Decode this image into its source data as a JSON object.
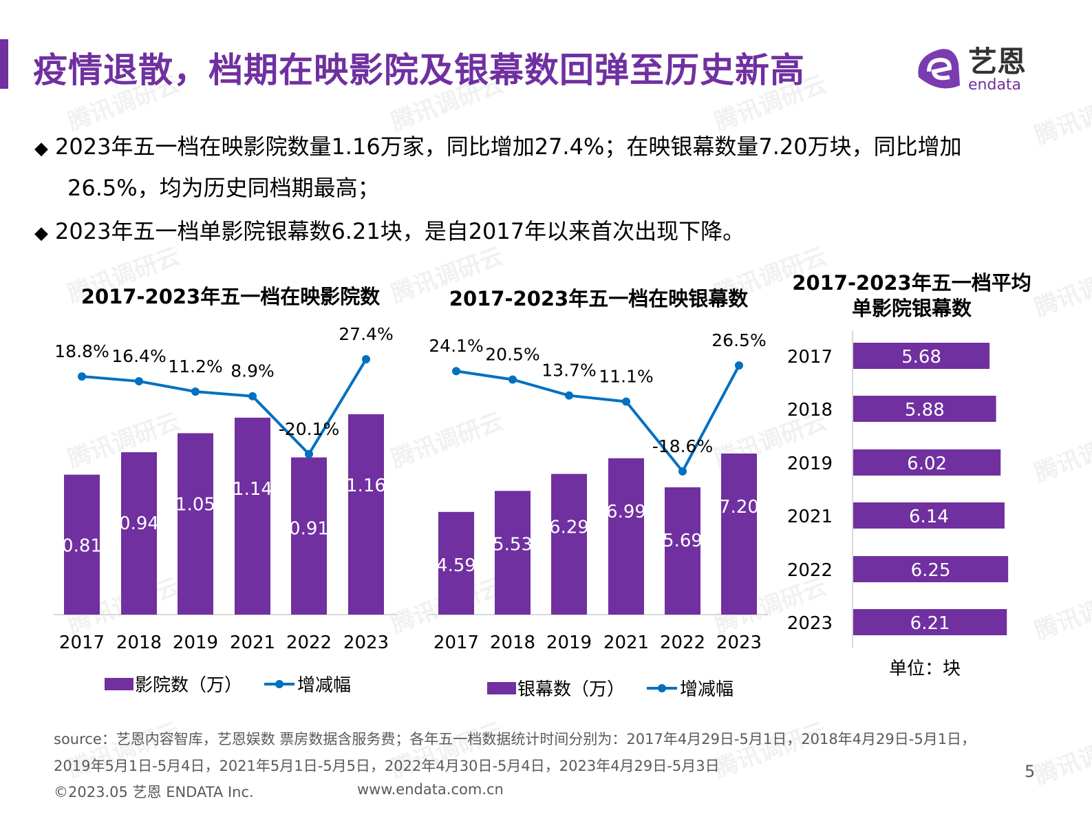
{
  "title": "疫情退散，档期在映影院及银幕数回弹至历史新高",
  "logo": {
    "cn": "艺恩",
    "en": "endata",
    "color": "#7030a0"
  },
  "watermark": "腾讯调研云",
  "bullets": [
    {
      "line1": "2023年五一档在映影院数量1.16万家，同比增加27.4%；在映银幕数量7.20万块，同比增加",
      "line2": "26.5%，均为历史同档期最高；"
    },
    {
      "line1": "2023年五一档单影院银幕数6.21块，是自2017年以来首次出现下降。"
    }
  ],
  "colors": {
    "bar": "#7030a0",
    "line": "#0070c0",
    "title": "#7030a0"
  },
  "chart_data": [
    {
      "type": "bar+line",
      "title": "2017-2023年五一档在映影院数",
      "categories": [
        "2017",
        "2018",
        "2019",
        "2021",
        "2022",
        "2023"
      ],
      "series": [
        {
          "name": "影院数（万）",
          "type": "bar",
          "values": [
            0.81,
            0.94,
            1.05,
            1.14,
            0.91,
            1.16
          ],
          "labels": [
            "0.81",
            "0.94",
            "1.05",
            "1.14",
            "0.91",
            "1.16"
          ]
        },
        {
          "name": "增减幅",
          "type": "line",
          "values": [
            18.8,
            16.4,
            11.2,
            8.9,
            -20.1,
            27.4
          ],
          "labels": [
            "18.8%",
            "16.4%",
            "11.2%",
            "8.9%",
            "-20.1%",
            "27.4%"
          ]
        }
      ],
      "legend": "bottom"
    },
    {
      "type": "bar+line",
      "title": "2017-2023年五一档在映银幕数",
      "categories": [
        "2017",
        "2018",
        "2019",
        "2021",
        "2022",
        "2023"
      ],
      "series": [
        {
          "name": "银幕数（万）",
          "type": "bar",
          "values": [
            4.59,
            5.53,
            6.29,
            6.99,
            5.69,
            7.2
          ],
          "labels": [
            "4.59",
            "5.53",
            "6.29",
            "6.99",
            "5.69",
            "7.20"
          ]
        },
        {
          "name": "增减幅",
          "type": "line",
          "values": [
            24.1,
            20.5,
            13.7,
            11.1,
            -18.6,
            26.5
          ],
          "labels": [
            "24.1%",
            "20.5%",
            "13.7%",
            "11.1%",
            "-18.6%",
            "26.5%"
          ]
        }
      ],
      "legend": "bottom"
    },
    {
      "type": "bar",
      "orientation": "horizontal",
      "title_line1": "2017-2023年五一档平均",
      "title_line2": "单影院银幕数",
      "categories": [
        "2017",
        "2018",
        "2019",
        "2021",
        "2022",
        "2023"
      ],
      "values": [
        5.68,
        5.88,
        6.02,
        6.14,
        6.25,
        6.21
      ],
      "labels": [
        "5.68",
        "5.88",
        "6.02",
        "6.14",
        "6.25",
        "6.21"
      ],
      "unit": "单位：块"
    }
  ],
  "footer": {
    "source1": "source：艺恩内容智库，艺恩娱数    票房数据含服务费；各年五一档数据统计时间分别为：2017年4月29日-5月1日，2018年4月29日-5月1日，",
    "source2": "2019年5月1日-5月4日，2021年5月1日-5月5日，2022年4月30日-5月4日，2023年4月29日-5月3日",
    "copyright": "©2023.05 艺恩 ENDATA Inc.",
    "website": "www.endata.com.cn",
    "page": "5"
  }
}
